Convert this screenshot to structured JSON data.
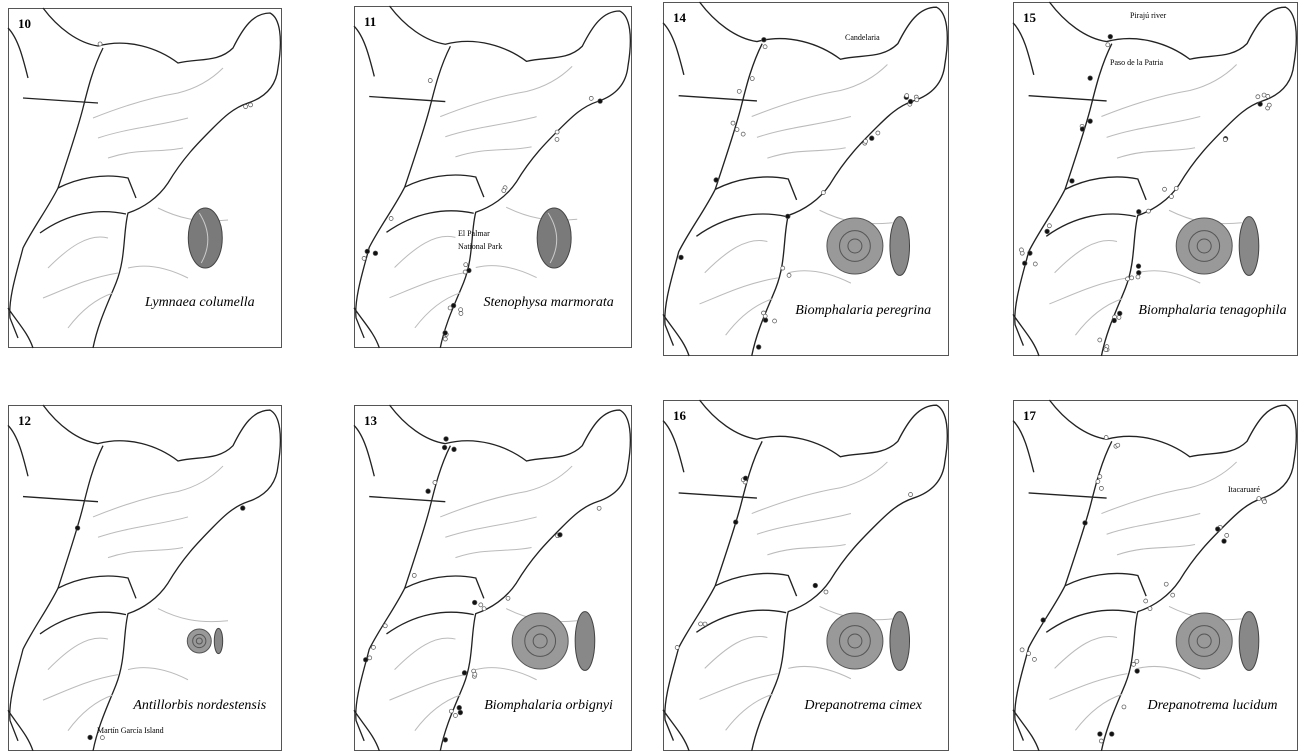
{
  "panels": [
    {
      "number": "10",
      "species": "Lymnaea columella"
    },
    {
      "number": "11",
      "species": "Stenophysa marmorata",
      "places": [
        "El Palmar",
        "National Park"
      ]
    },
    {
      "number": "14",
      "species": "Biomphalaria peregrina",
      "places": [
        "Candelaria"
      ]
    },
    {
      "number": "15",
      "species": "Biomphalaria tenagophila",
      "places": [
        "Pirajú river",
        "Paso de la Patria"
      ]
    },
    {
      "number": "12",
      "species": "Antillorbis nordestensis",
      "places": [
        "Martín García Island"
      ]
    },
    {
      "number": "13",
      "species": "Biomphalaria orbignyi"
    },
    {
      "number": "16",
      "species": "Drepanotrema cimex"
    },
    {
      "number": "17",
      "species": "Drepanotrema lucidum",
      "places": [
        "Itacaruaré"
      ]
    }
  ]
}
